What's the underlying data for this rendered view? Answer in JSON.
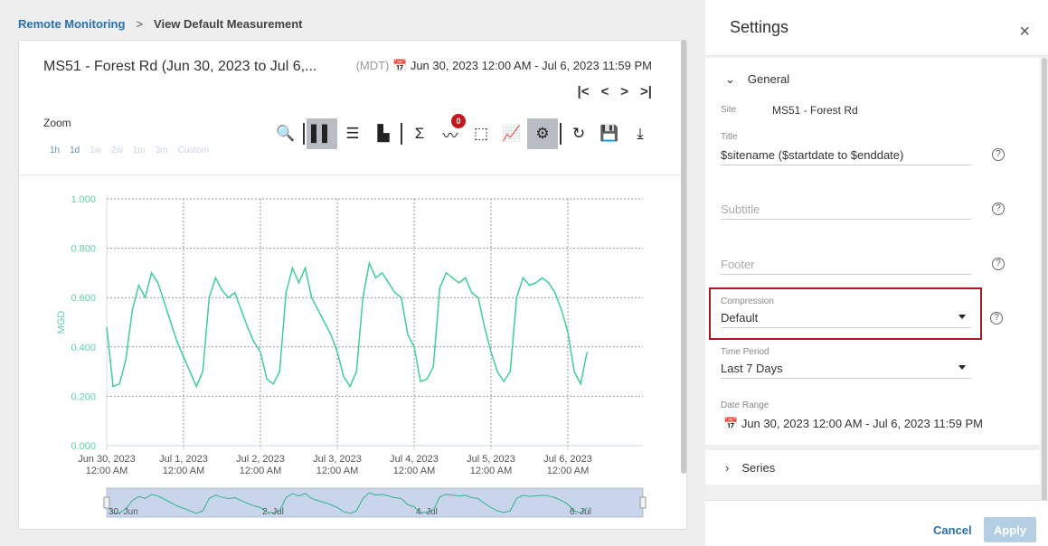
{
  "breadcrumb": {
    "parent": "Remote Monitoring",
    "separator": ">",
    "current": "View Default Measurement"
  },
  "card": {
    "title": "MS51 - Forest Rd (Jun 30, 2023 to Jul 6,...",
    "timezone": "(MDT)",
    "calendar_icon": "calendar-icon",
    "range": "Jun 30, 2023 12:00 AM - Jul 6, 2023 11:59 PM",
    "nav": {
      "first": "|<",
      "prev": "<",
      "next": ">",
      "last": ">|"
    },
    "zoom_label": "Zoom",
    "zoom_options": [
      "1h",
      "1d",
      "1w",
      "2w",
      "1m",
      "3m",
      "Custom"
    ],
    "zoom_enabled": [
      "1h",
      "1d"
    ],
    "toolbar": [
      {
        "icon": "search-icon",
        "glyph": "🔍"
      },
      {
        "icon": "bar-chart-icon",
        "glyph": "▌▌",
        "active": true
      },
      {
        "icon": "list-icon",
        "glyph": "☰"
      },
      {
        "icon": "stacked-bar-icon",
        "glyph": "▙"
      },
      {
        "icon": "sigma-icon",
        "glyph": "Σ"
      },
      {
        "icon": "pulse-icon",
        "glyph": "〰",
        "badge": "0"
      },
      {
        "icon": "select-add-icon",
        "glyph": "⬚"
      },
      {
        "icon": "line-chart-icon",
        "glyph": "📈"
      },
      {
        "icon": "gear-icon",
        "glyph": "⚙",
        "active": true
      },
      {
        "icon": "refresh-icon",
        "glyph": "↻"
      },
      {
        "icon": "save-icon",
        "glyph": "💾"
      },
      {
        "icon": "download-icon",
        "glyph": "⤓"
      }
    ]
  },
  "chart_data": {
    "type": "line",
    "ylabel": "MGD",
    "ylim": [
      0,
      1
    ],
    "yticks": [
      "0.000",
      "0.200",
      "0.400",
      "0.600",
      "0.800",
      "1.000"
    ],
    "xticks": [
      [
        "Jun 30, 2023",
        "12:00 AM"
      ],
      [
        "Jul 1, 2023",
        "12:00 AM"
      ],
      [
        "Jul 2, 2023",
        "12:00 AM"
      ],
      [
        "Jul 3, 2023",
        "12:00 AM"
      ],
      [
        "Jul 4, 2023",
        "12:00 AM"
      ],
      [
        "Jul 5, 2023",
        "12:00 AM"
      ],
      [
        "Jul 6, 2023",
        "12:00 AM"
      ]
    ],
    "navigator_labels": [
      "30. Jun",
      "2. Jul",
      "4. Jul",
      "6. Jul"
    ],
    "grid": true,
    "color": "#3ecf96",
    "sample_times": [
      "00:00",
      "02:00",
      "04:00",
      "06:00",
      "08:00",
      "10:00",
      "12:00",
      "14:00",
      "16:00",
      "18:00",
      "20:00",
      "22:00"
    ],
    "series": [
      {
        "days": [
          {
            "date": "2023-06-30",
            "values": [
              0.48,
              0.24,
              0.25,
              0.35,
              0.55,
              0.65,
              0.6,
              0.7,
              0.66,
              0.58,
              0.5,
              0.42
            ]
          },
          {
            "date": "2023-07-01",
            "values": [
              0.36,
              0.3,
              0.24,
              0.3,
              0.6,
              0.68,
              0.63,
              0.6,
              0.62,
              0.55,
              0.48,
              0.42
            ]
          },
          {
            "date": "2023-07-02",
            "values": [
              0.38,
              0.27,
              0.25,
              0.3,
              0.62,
              0.72,
              0.66,
              0.72,
              0.6,
              0.55,
              0.5,
              0.45
            ]
          },
          {
            "date": "2023-07-03",
            "values": [
              0.38,
              0.28,
              0.24,
              0.3,
              0.6,
              0.74,
              0.68,
              0.7,
              0.66,
              0.62,
              0.6,
              0.45
            ]
          },
          {
            "date": "2023-07-04",
            "values": [
              0.4,
              0.26,
              0.27,
              0.32,
              0.64,
              0.7,
              0.68,
              0.66,
              0.68,
              0.62,
              0.6,
              0.48
            ]
          },
          {
            "date": "2023-07-05",
            "values": [
              0.38,
              0.3,
              0.26,
              0.3,
              0.6,
              0.68,
              0.65,
              0.66,
              0.68,
              0.66,
              0.62,
              0.55
            ]
          },
          {
            "date": "2023-07-06",
            "values": [
              0.46,
              0.3,
              0.25,
              0.38
            ]
          }
        ]
      }
    ]
  },
  "settings": {
    "title": "Settings",
    "close": "×",
    "general": "General",
    "site_label": "Site",
    "site_value": "MS51 - Forest Rd",
    "title_label": "Title",
    "title_value": "$sitename ($startdate to $enddate)",
    "subtitle_placeholder": "Subtitle",
    "footer_placeholder": "Footer",
    "compression_label": "Compression",
    "compression_value": "Default",
    "time_period_label": "Time Period",
    "time_period_value": "Last 7 Days",
    "date_range_label": "Date Range",
    "date_range_value": "Jun 30, 2023 12:00 AM - Jul 6, 2023 11:59 PM",
    "series": "Series",
    "help": "?",
    "cancel": "Cancel",
    "apply": "Apply",
    "highlight_color": "#a51b1f"
  }
}
